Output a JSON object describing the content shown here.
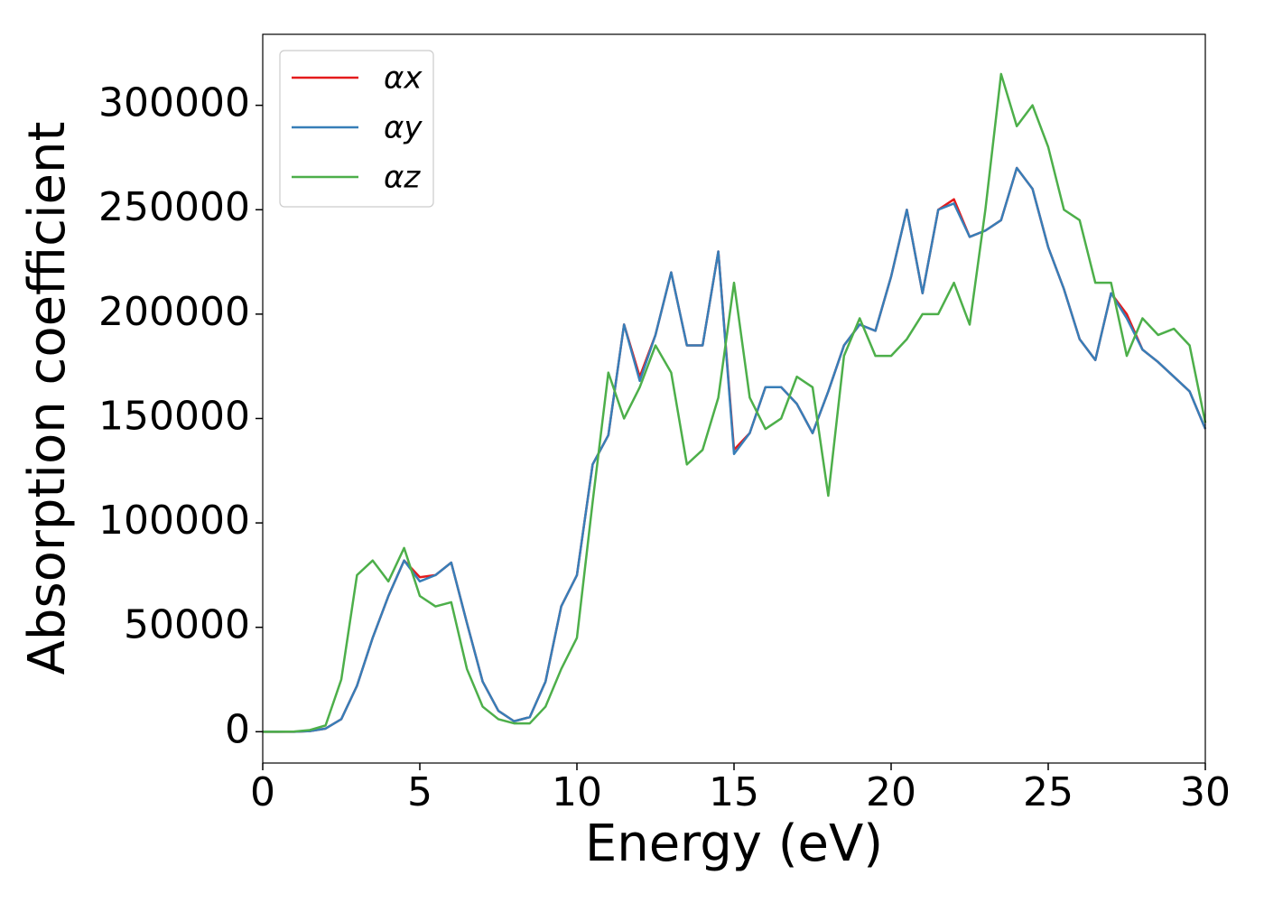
{
  "chart_data": {
    "type": "line",
    "xlabel": "Energy (eV)",
    "ylabel": "Absorption coefficient",
    "x": [
      0,
      0.5,
      1,
      1.5,
      2,
      2.5,
      3,
      3.5,
      4,
      4.5,
      5,
      5.5,
      6,
      6.5,
      7,
      7.5,
      8,
      8.5,
      9,
      9.5,
      10,
      10.5,
      11,
      11.5,
      12,
      12.5,
      13,
      13.5,
      14,
      14.5,
      15,
      15.5,
      16,
      16.5,
      17,
      17.5,
      18,
      18.5,
      19,
      19.5,
      20,
      20.5,
      21,
      21.5,
      22,
      22.5,
      23,
      23.5,
      24,
      24.5,
      25,
      25.5,
      26,
      26.5,
      27,
      27.5,
      28,
      28.5,
      29,
      29.5,
      30
    ],
    "series": [
      {
        "name": "αx",
        "color": "#e41a1c",
        "values": [
          0,
          0,
          0,
          300,
          1500,
          6000,
          22000,
          45000,
          65000,
          82000,
          74000,
          75000,
          81000,
          52000,
          24000,
          10000,
          5000,
          7000,
          24000,
          60000,
          75000,
          128000,
          142000,
          195000,
          170000,
          190000,
          220000,
          185000,
          185000,
          230000,
          135000,
          143000,
          165000,
          165000,
          157000,
          143000,
          163000,
          185000,
          195000,
          192000,
          218000,
          250000,
          210000,
          250000,
          255000,
          237000,
          240000,
          245000,
          270000,
          260000,
          232000,
          212000,
          188000,
          178000,
          210000,
          200000,
          183000,
          177000,
          170000,
          163000,
          145000
        ]
      },
      {
        "name": "αy",
        "color": "#377eb8",
        "values": [
          0,
          0,
          0,
          300,
          1500,
          6000,
          22000,
          45000,
          65000,
          82000,
          72000,
          75000,
          81000,
          52000,
          24000,
          10000,
          5000,
          7000,
          24000,
          60000,
          75000,
          128000,
          142000,
          195000,
          168000,
          190000,
          220000,
          185000,
          185000,
          230000,
          133000,
          143000,
          165000,
          165000,
          157000,
          143000,
          163000,
          185000,
          195000,
          192000,
          218000,
          250000,
          210000,
          250000,
          253000,
          237000,
          240000,
          245000,
          270000,
          260000,
          232000,
          212000,
          188000,
          178000,
          210000,
          198000,
          183000,
          177000,
          170000,
          163000,
          145000
        ]
      },
      {
        "name": "αz",
        "color": "#4daf4a",
        "values": [
          0,
          0,
          100,
          800,
          3000,
          25000,
          75000,
          82000,
          72000,
          88000,
          65000,
          60000,
          62000,
          30000,
          12000,
          6000,
          4000,
          4000,
          12000,
          30000,
          45000,
          110000,
          172000,
          150000,
          165000,
          185000,
          172000,
          128000,
          135000,
          160000,
          215000,
          160000,
          145000,
          150000,
          170000,
          165000,
          113000,
          180000,
          198000,
          180000,
          180000,
          188000,
          200000,
          200000,
          215000,
          195000,
          250000,
          315000,
          290000,
          300000,
          280000,
          250000,
          245000,
          215000,
          215000,
          180000,
          198000,
          190000,
          193000,
          185000,
          148000
        ]
      }
    ],
    "xlim": [
      0,
      30
    ],
    "xticks": [
      0,
      5,
      10,
      15,
      20,
      25,
      30
    ],
    "ylim": [
      -15000,
      334000
    ],
    "yticks": [
      0,
      50000,
      100000,
      150000,
      200000,
      250000,
      300000
    ],
    "grid": false,
    "legend": "upper left"
  }
}
